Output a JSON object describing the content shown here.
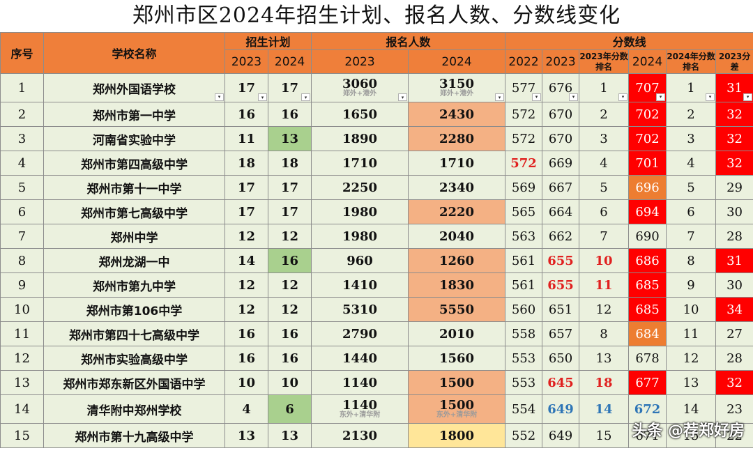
{
  "title": "郑州市区2024年招生计划、报名人数、分数线变化",
  "watermark": "头条 @荐郑好房",
  "headers": {
    "seq": "序号",
    "school": "学校名称",
    "plan": "招生计划",
    "applicants": "报名人数",
    "scores": "分数线",
    "y2022": "2022",
    "y2023": "2023",
    "y2024": "2024",
    "rank2023": "2023年分数排名",
    "rank2024": "2024年分数排名",
    "diff2023": "2023分差"
  },
  "colors": {
    "header": "#ef7f3a",
    "row": "#ebf1de",
    "orange": "#f4b184",
    "yellow": "#ffe699",
    "green": "#a9d08e",
    "red": "#ff0000",
    "darkorange": "#ed7d31",
    "text_red": "#e0201f",
    "text_blue": "#2e75b6"
  },
  "dropdown_icon": "▾",
  "rows": [
    {
      "seq": "1",
      "school": "郑州外国语学校",
      "plan2023": "17",
      "plan2024": "17",
      "app2023": "3060",
      "app2023_note": "郑外+港外",
      "app2024": "3150",
      "app2024_note": "郑外+港外",
      "s2022": "577",
      "s2023": "676",
      "rank2023": "1",
      "s2024": "707",
      "rank2024": "1",
      "diff": "31"
    },
    {
      "seq": "2",
      "school": "郑州市第一中学",
      "plan2023": "16",
      "plan2024": "16",
      "app2023": "1650",
      "app2024": "2430",
      "s2022": "572",
      "s2023": "670",
      "rank2023": "2",
      "s2024": "702",
      "rank2024": "2",
      "diff": "32"
    },
    {
      "seq": "3",
      "school": "河南省实验中学",
      "plan2023": "11",
      "plan2024": "13",
      "app2023": "1890",
      "app2024": "2280",
      "s2022": "572",
      "s2023": "670",
      "rank2023": "3",
      "s2024": "702",
      "rank2024": "3",
      "diff": "32"
    },
    {
      "seq": "4",
      "school": "郑州市第四高级中学",
      "plan2023": "18",
      "plan2024": "18",
      "app2023": "1710",
      "app2024": "1710",
      "s2022": "572",
      "s2023": "669",
      "rank2023": "4",
      "s2024": "701",
      "rank2024": "4",
      "diff": "32"
    },
    {
      "seq": "5",
      "school": "郑州市第十一中学",
      "plan2023": "17",
      "plan2024": "17",
      "app2023": "2250",
      "app2024": "2340",
      "s2022": "569",
      "s2023": "667",
      "rank2023": "5",
      "s2024": "696",
      "rank2024": "5",
      "diff": "29"
    },
    {
      "seq": "6",
      "school": "郑州市第七高级中学",
      "plan2023": "17",
      "plan2024": "17",
      "app2023": "1980",
      "app2024": "2220",
      "s2022": "565",
      "s2023": "664",
      "rank2023": "6",
      "s2024": "694",
      "rank2024": "6",
      "diff": "30"
    },
    {
      "seq": "7",
      "school": "郑州中学",
      "plan2023": "12",
      "plan2024": "12",
      "app2023": "1980",
      "app2024": "2040",
      "s2022": "563",
      "s2023": "662",
      "rank2023": "7",
      "s2024": "690",
      "rank2024": "7",
      "diff": "28"
    },
    {
      "seq": "8",
      "school": "郑州龙湖一中",
      "plan2023": "14",
      "plan2024": "16",
      "app2023": "960",
      "app2024": "1260",
      "s2022": "561",
      "s2023": "655",
      "rank2023": "10",
      "s2024": "686",
      "rank2024": "8",
      "diff": "31"
    },
    {
      "seq": "9",
      "school": "郑州市第九中学",
      "plan2023": "12",
      "plan2024": "12",
      "app2023": "1410",
      "app2024": "1830",
      "s2022": "561",
      "s2023": "655",
      "rank2023": "11",
      "s2024": "685",
      "rank2024": "9",
      "diff": "30"
    },
    {
      "seq": "10",
      "school": "郑州市第106中学",
      "plan2023": "12",
      "plan2024": "12",
      "app2023": "5310",
      "app2024": "5550",
      "s2022": "560",
      "s2023": "651",
      "rank2023": "12",
      "s2024": "685",
      "rank2024": "10",
      "diff": "34"
    },
    {
      "seq": "11",
      "school": "郑州市第四十七高级中学",
      "plan2023": "16",
      "plan2024": "16",
      "app2023": "2790",
      "app2024": "2010",
      "s2022": "558",
      "s2023": "657",
      "rank2023": "8",
      "s2024": "684",
      "rank2024": "11",
      "diff": "27"
    },
    {
      "seq": "12",
      "school": "郑州市实验高级中学",
      "plan2023": "16",
      "plan2024": "16",
      "app2023": "1440",
      "app2024": "1560",
      "s2022": "553",
      "s2023": "650",
      "rank2023": "13",
      "s2024": "678",
      "rank2024": "12",
      "diff": "28"
    },
    {
      "seq": "13",
      "school": "郑州市郑东新区外国语中学",
      "plan2023": "10",
      "plan2024": "10",
      "app2023": "1140",
      "app2024": "1500",
      "s2022": "553",
      "s2023": "645",
      "rank2023": "18",
      "s2024": "677",
      "rank2024": "13",
      "diff": "32"
    },
    {
      "seq": "14",
      "school": "清华附中郑州学校",
      "plan2023": "4",
      "plan2024": "6",
      "app2023": "1140",
      "app2023_note": "东外+清华附",
      "app2024": "1500",
      "app2024_note": "东外+清华附",
      "s2022": "554",
      "s2023": "649",
      "rank2023": "14",
      "s2024": "672",
      "rank2024": "14",
      "diff": "23"
    },
    {
      "seq": "15",
      "school": "郑州市第十九高级中学",
      "plan2023": "13",
      "plan2024": "13",
      "app2023": "2130",
      "app2024": "1800",
      "s2022": "552",
      "s2023": "649",
      "rank2023": "15",
      "s2024": "671",
      "rank2024": "15",
      "diff": "22"
    }
  ]
}
